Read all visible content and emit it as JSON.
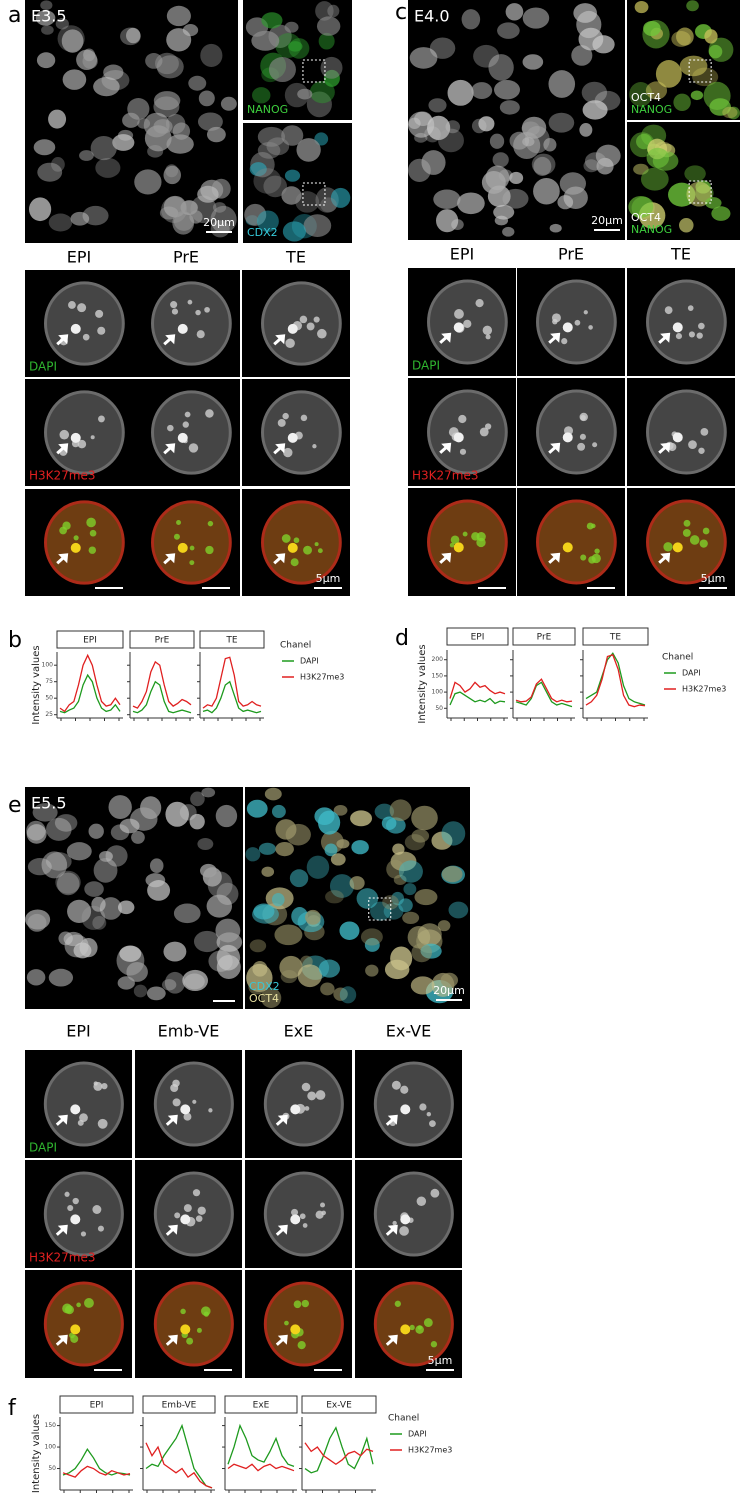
{
  "panel_a": {
    "label": "a",
    "stage": "E3.5",
    "markers": [
      [
        {
          "text": "NANOG",
          "color": "#3ecf3e"
        }
      ],
      [
        {
          "text": "CDX2",
          "color": "#35c8d8"
        }
      ]
    ],
    "scale_bar_large": "20µm",
    "columns": [
      "EPI",
      "PrE",
      "TE"
    ],
    "rows": [
      {
        "text": "DAPI",
        "color": "#2fb52f"
      },
      {
        "text": "H3K27me3",
        "color": "#e02020"
      }
    ],
    "scale_bar_small": "5µm"
  },
  "panel_c": {
    "label": "c",
    "stage": "E4.0",
    "markers": [
      [
        {
          "text": "OCT4",
          "color": "#ffffff"
        },
        {
          "text": "NANOG",
          "color": "#3ecf3e"
        }
      ],
      [
        {
          "text": "OCT4",
          "color": "#ffffff"
        },
        {
          "text": "NANOG",
          "color": "#3ecf3e"
        }
      ]
    ],
    "scale_bar_large": "20µm",
    "columns": [
      "EPI",
      "PrE",
      "TE"
    ],
    "rows": [
      {
        "text": "DAPI",
        "color": "#2fb52f"
      },
      {
        "text": "H3K27me3",
        "color": "#e02020"
      }
    ],
    "scale_bar_small": "5µm"
  },
  "panel_e": {
    "label": "e",
    "stage": "E5.5",
    "markers": [
      [
        {
          "text": "CDX2",
          "color": "#35c8d8"
        },
        {
          "text": "OCT4",
          "color": "#e8e0a0"
        }
      ]
    ],
    "scale_bar_large": "20µm",
    "columns": [
      "EPI",
      "Emb-VE",
      "ExE",
      "Ex-VE"
    ],
    "rows": [
      {
        "text": "DAPI",
        "color": "#2fb52f"
      },
      {
        "text": "H3K27me3",
        "color": "#e02020"
      }
    ],
    "scale_bar_small": "5µm"
  },
  "chart_data": [
    {
      "type": "line",
      "label": "b",
      "ylabel": "Intensity values",
      "legend_title": "Chanel",
      "series": [
        {
          "name": "DAPI",
          "color": "#1e9a1e"
        },
        {
          "name": "H3K27me3",
          "color": "#e02020"
        }
      ],
      "ylim": [
        20,
        120
      ],
      "yticks": [
        25,
        50,
        75,
        100
      ],
      "facets": [
        {
          "title": "EPI",
          "values": [
            [
              30,
              28,
              32,
              35,
              45,
              70,
              85,
              75,
              50,
              35,
              30,
              32,
              40,
              30
            ],
            [
              35,
              30,
              40,
              45,
              70,
              100,
              115,
              100,
              70,
              45,
              38,
              40,
              50,
              40
            ]
          ]
        },
        {
          "title": "PrE",
          "values": [
            [
              30,
              28,
              32,
              40,
              60,
              75,
              70,
              45,
              30,
              28,
              30,
              32,
              30,
              28
            ],
            [
              38,
              35,
              45,
              60,
              90,
              105,
              100,
              70,
              45,
              38,
              42,
              48,
              45,
              40
            ]
          ]
        },
        {
          "title": "TE",
          "values": [
            [
              30,
              32,
              28,
              35,
              50,
              70,
              75,
              55,
              35,
              30,
              32,
              30,
              28,
              30
            ],
            [
              35,
              40,
              38,
              50,
              80,
              110,
              112,
              85,
              45,
              38,
              40,
              45,
              40,
              38
            ]
          ]
        }
      ]
    },
    {
      "type": "line",
      "label": "d",
      "ylabel": "Intensity values",
      "legend_title": "Chanel",
      "series": [
        {
          "name": "DAPI",
          "color": "#1e9a1e"
        },
        {
          "name": "H3K27me3",
          "color": "#e02020"
        }
      ],
      "ylim": [
        20,
        230
      ],
      "yticks": [
        50,
        100,
        150,
        200
      ],
      "facets": [
        {
          "title": "EPI",
          "values": [
            [
              60,
              95,
              100,
              90,
              80,
              70,
              75,
              70,
              80,
              65,
              72,
              70
            ],
            [
              80,
              130,
              120,
              100,
              110,
              130,
              115,
              120,
              105,
              95,
              100,
              95
            ]
          ]
        },
        {
          "title": "PrE",
          "values": [
            [
              70,
              65,
              60,
              80,
              120,
              130,
              100,
              70,
              60,
              65,
              60,
              55
            ],
            [
              75,
              70,
              72,
              85,
              125,
              140,
              110,
              80,
              70,
              75,
              70,
              72
            ]
          ]
        },
        {
          "title": "TE",
          "values": [
            [
              80,
              90,
              100,
              150,
              200,
              220,
              190,
              120,
              80,
              70,
              65,
              60
            ],
            [
              60,
              70,
              90,
              140,
              210,
              215,
              170,
              90,
              60,
              55,
              60,
              58
            ]
          ]
        }
      ]
    },
    {
      "type": "line",
      "label": "f",
      "ylabel": "Intensity values",
      "legend_title": "Chanel",
      "series": [
        {
          "name": "DAPI",
          "color": "#1e9a1e"
        },
        {
          "name": "H3K27me3",
          "color": "#e02020"
        }
      ],
      "ylim": [
        0,
        170
      ],
      "yticks": [
        50,
        100,
        150
      ],
      "facets": [
        {
          "title": "EPI",
          "values": [
            [
              35,
              40,
              50,
              70,
              95,
              75,
              50,
              40,
              35,
              40,
              38,
              35
            ],
            [
              40,
              35,
              30,
              45,
              55,
              50,
              40,
              35,
              45,
              40,
              35,
              38
            ]
          ]
        },
        {
          "title": "Emb-VE",
          "values": [
            [
              50,
              60,
              55,
              80,
              100,
              120,
              150,
              100,
              50,
              30,
              10,
              5
            ],
            [
              110,
              80,
              100,
              60,
              50,
              40,
              50,
              30,
              40,
              20,
              10,
              5
            ]
          ]
        },
        {
          "title": "ExE",
          "values": [
            [
              60,
              100,
              150,
              120,
              80,
              70,
              65,
              90,
              120,
              80,
              60,
              55
            ],
            [
              50,
              60,
              55,
              50,
              60,
              45,
              55,
              60,
              50,
              55,
              50,
              45
            ]
          ]
        },
        {
          "title": "Ex-VE",
          "values": [
            [
              50,
              40,
              45,
              80,
              120,
              145,
              100,
              60,
              50,
              80,
              120,
              60
            ],
            [
              110,
              90,
              100,
              80,
              70,
              60,
              70,
              85,
              90,
              80,
              95,
              90
            ]
          ]
        }
      ]
    }
  ]
}
